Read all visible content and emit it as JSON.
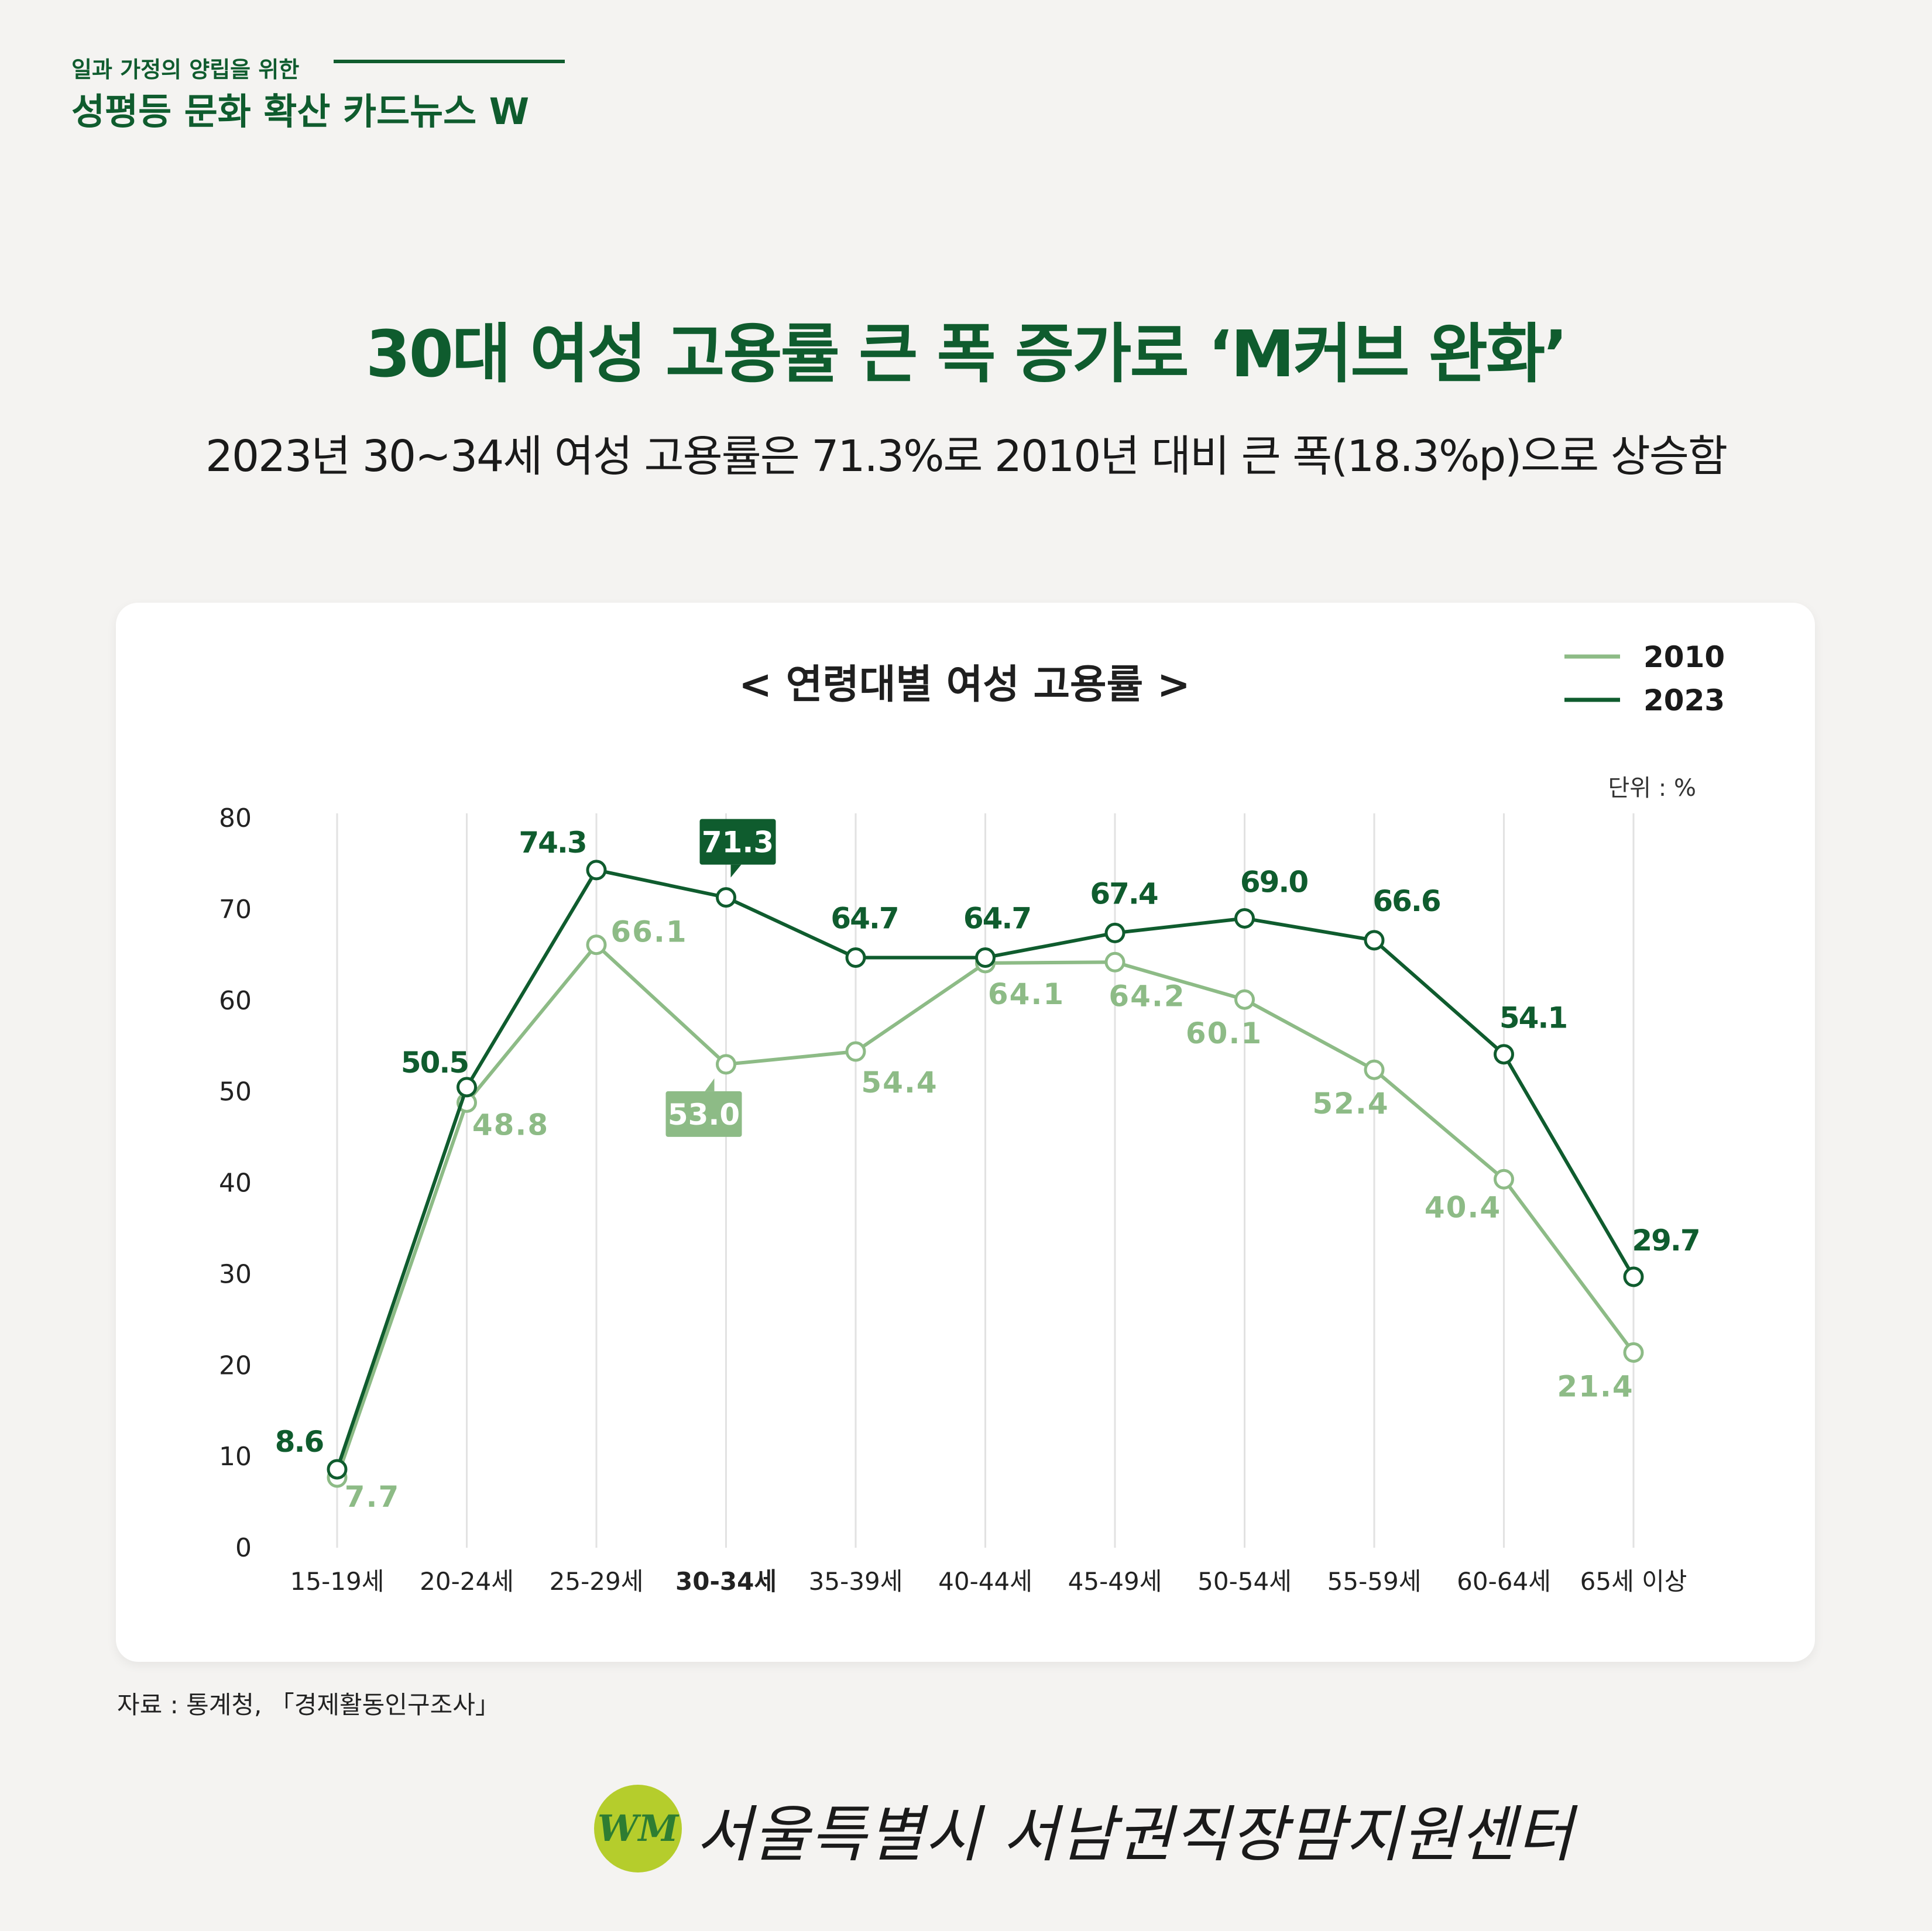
{
  "header": {
    "series_tag": "일과 가정의 양립을 위한",
    "series_title": "성평등 문화 확산 카드뉴스 W"
  },
  "headline": "30대 여성 고용률 큰 폭 증가로 ‘M커브 완화’",
  "subheadline": "2023년 30~34세 여성 고용률은 71.3%로 2010년 대비 큰 폭(18.3%p)으로 상승함",
  "source": "자료 : 통계청, 「경제활동인구조사」",
  "footer": {
    "logo_text": "WM",
    "org_name": "서울특별시 서남권직장맘지원센터"
  },
  "colors": {
    "s2010": "#8dbb86",
    "s2023": "#0f5c2e",
    "grid": "#e2e2e2",
    "text": "#1a1a1a"
  },
  "chart_data": {
    "type": "line",
    "title": "< 연령대별 여성 고용률 >",
    "unit_note": "단위 : %",
    "categories": [
      "15-19세",
      "20-24세",
      "25-29세",
      "30-34세",
      "35-39세",
      "40-44세",
      "45-49세",
      "50-54세",
      "55-59세",
      "60-64세",
      "65세 이상"
    ],
    "highlight_category": "30-34세",
    "series": [
      {
        "name": "2010",
        "values": [
          7.7,
          48.8,
          66.1,
          53.0,
          54.4,
          64.1,
          64.2,
          60.1,
          52.4,
          40.4,
          21.4
        ]
      },
      {
        "name": "2023",
        "values": [
          8.6,
          50.5,
          74.3,
          71.3,
          64.7,
          64.7,
          67.4,
          69.0,
          66.6,
          54.1,
          29.7
        ]
      }
    ],
    "value_labels": [
      [
        "7.7",
        "48.8",
        "66.1",
        "53.0",
        "54.4",
        "64.1",
        "64.2",
        "60.1",
        "52.4",
        "40.4",
        "21.4"
      ],
      [
        "8.6",
        "50.5",
        "74.3",
        "71.3",
        "64.7",
        "64.7",
        "67.4",
        "69.0",
        "66.6",
        "54.1",
        "29.7"
      ]
    ],
    "ylim": [
      0,
      80
    ],
    "yticks": [
      "0",
      "10",
      "20",
      "30",
      "40",
      "50",
      "60",
      "70",
      "80"
    ],
    "grid": "vertical",
    "legend_position": "top-right"
  }
}
